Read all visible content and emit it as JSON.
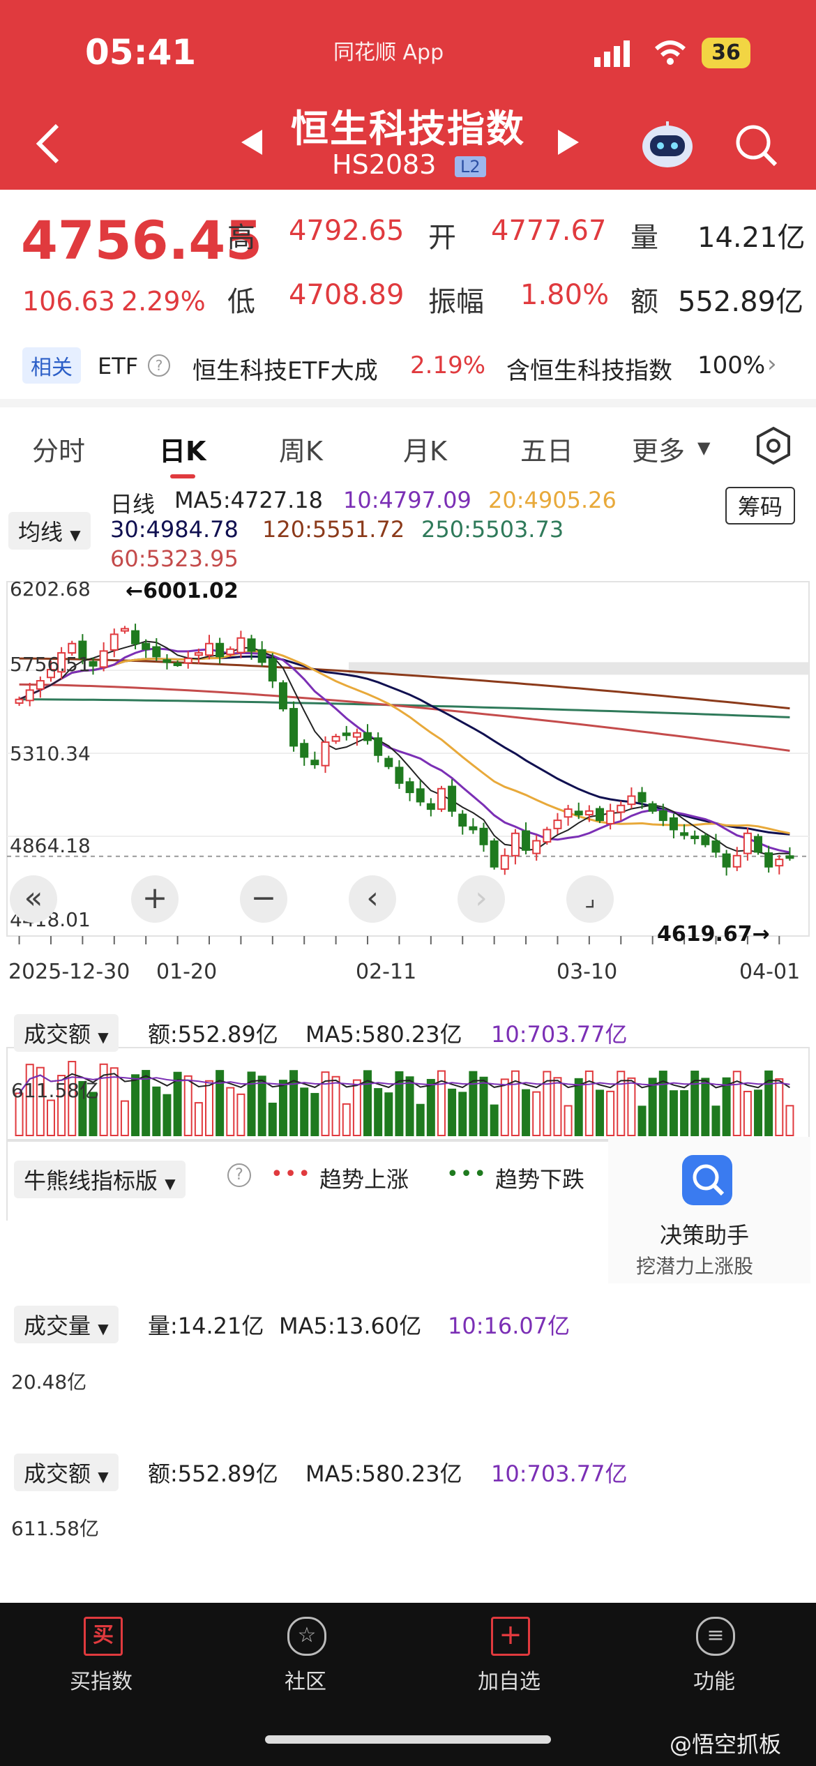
{
  "status": {
    "time": "05:41",
    "app_label": "同花顺 App",
    "battery": "36"
  },
  "header": {
    "title": "恒生科技指数",
    "code": "HS2083",
    "level": "L2"
  },
  "quote": {
    "price": "4756.45",
    "change": "106.63",
    "change_pct": "2.29%",
    "high_label": "高",
    "high": "4792.65",
    "open_label": "开",
    "open": "4777.67",
    "volume_label": "量",
    "volume": "14.21亿",
    "low_label": "低",
    "low": "4708.89",
    "amp_label": "振幅",
    "amp": "1.80%",
    "amount_label": "额",
    "amount": "552.89亿"
  },
  "related": {
    "tag": "相关",
    "etf": "ETF",
    "name": "恒生科技ETF大成",
    "pct": "2.19%",
    "contains": "含恒生科技指数",
    "contains_pct": "100%"
  },
  "tabs": [
    "分时",
    "日K",
    "周K",
    "月K",
    "五日",
    "更多"
  ],
  "kline": {
    "indicator": "均线",
    "period": "日线",
    "chip_button": "筹码",
    "ma5": "MA5:4727.18",
    "ma10": "10:4797.09",
    "ma20": "20:4905.26",
    "ma30": "30:4984.78",
    "ma120": "120:5551.72",
    "ma250": "250:5503.73",
    "ma60": "60:5323.95",
    "y_ticks": [
      "6202.68",
      "5756.51",
      "5310.34",
      "4864.18",
      "4418.01"
    ],
    "max_label": "←6001.02",
    "min_label": "4619.67→",
    "x_ticks": [
      "2025-12-30",
      "01-20",
      "02-11",
      "03-10",
      "04-01"
    ]
  },
  "panel1": {
    "name": "成交额",
    "value": "额:552.89亿",
    "ma5": "MA5:580.23亿",
    "ma10": "10:703.77亿",
    "y_tick": "611.58亿"
  },
  "panel2": {
    "name": "牛熊线指标版",
    "up": "趋势上涨",
    "down": "趋势下跌",
    "assistant": "决策助手",
    "assistant_sub": "挖潜力上涨股"
  },
  "panel3": {
    "name": "成交量",
    "value": "量:14.21亿",
    "ma5": "MA5:13.60亿",
    "ma10": "10:16.07亿",
    "y_tick": "20.48亿"
  },
  "panel4": {
    "name": "成交额",
    "value": "额:552.89亿",
    "ma5": "MA5:580.23亿",
    "ma10": "10:703.77亿",
    "y_tick": "611.58亿"
  },
  "nav": [
    "买指数",
    "社区",
    "加自选",
    "功能"
  ],
  "nav_icons": {
    "buy": "买"
  },
  "watermark": "@悟空抓板",
  "colors": {
    "up": "#e03a3e",
    "down": "#1f7a1f",
    "ma5": "#222222",
    "ma10": "#7b2fb5",
    "ma20": "#e8a93a",
    "ma30": "#101050",
    "ma60": "#c44b4b",
    "ma120": "#8b3a1a",
    "ma250": "#2f7a5a"
  },
  "chart_data": {
    "type": "candlestick",
    "y_range": [
      4418.01,
      6202.68
    ],
    "closes": [
      5600,
      5650,
      5700,
      5760,
      5850,
      5900,
      5820,
      5780,
      5860,
      5950,
      5980,
      5900,
      5870,
      5830,
      5800,
      5790,
      5820,
      5850,
      5900,
      5830,
      5870,
      5930,
      5860,
      5800,
      5700,
      5550,
      5350,
      5290,
      5250,
      5370,
      5400,
      5410,
      5420,
      5380,
      5300,
      5240,
      5150,
      5100,
      5050,
      5010,
      5120,
      5000,
      4920,
      4900,
      4820,
      4700,
      4760,
      4880,
      4790,
      4840,
      4900,
      4950,
      5010,
      4980,
      5000,
      4950,
      5000,
      5030,
      5080,
      5050,
      5000,
      4950,
      4900,
      4870,
      4860,
      4820,
      4780,
      4700,
      4760,
      4880,
      4780,
      4700,
      4740,
      4756
    ]
  }
}
